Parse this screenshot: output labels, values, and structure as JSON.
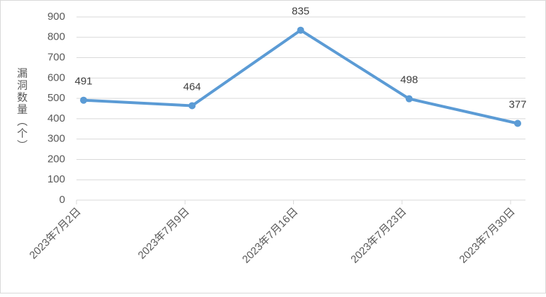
{
  "chart_data": {
    "type": "line",
    "y_label": "漏洞数量（个）",
    "categories": [
      "2023年7月2日",
      "2023年7月9日",
      "2023年7月16日",
      "2023年7月23日",
      "2023年7月30日"
    ],
    "values": [
      491,
      464,
      835,
      498,
      377
    ],
    "color": "#5b9bd5",
    "ylim": [
      0,
      900
    ],
    "yticks": [
      0,
      100,
      200,
      300,
      400,
      500,
      600,
      700,
      800,
      900
    ],
    "grid": true,
    "data_labels": true
  }
}
